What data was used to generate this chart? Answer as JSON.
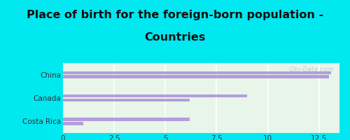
{
  "categories": [
    "China",
    "Canada",
    "Costa Rica"
  ],
  "values1": [
    13.1,
    9.0,
    6.2
  ],
  "values2": [
    13.0,
    6.2,
    1.0
  ],
  "bar_color": "#b39ddb",
  "background_outer": "#00e8f0",
  "background_inner_top": "#e8f5e9",
  "background_inner_bottom": "#c8e6c9",
  "title_line1": "Place of birth for the foreign-born population -",
  "title_line2": "Countries",
  "title_fontsize": 11.5,
  "xlim": [
    0,
    13.5
  ],
  "xticks": [
    0,
    2.5,
    5,
    7.5,
    10,
    12.5
  ],
  "watermark": "City-Data.com"
}
